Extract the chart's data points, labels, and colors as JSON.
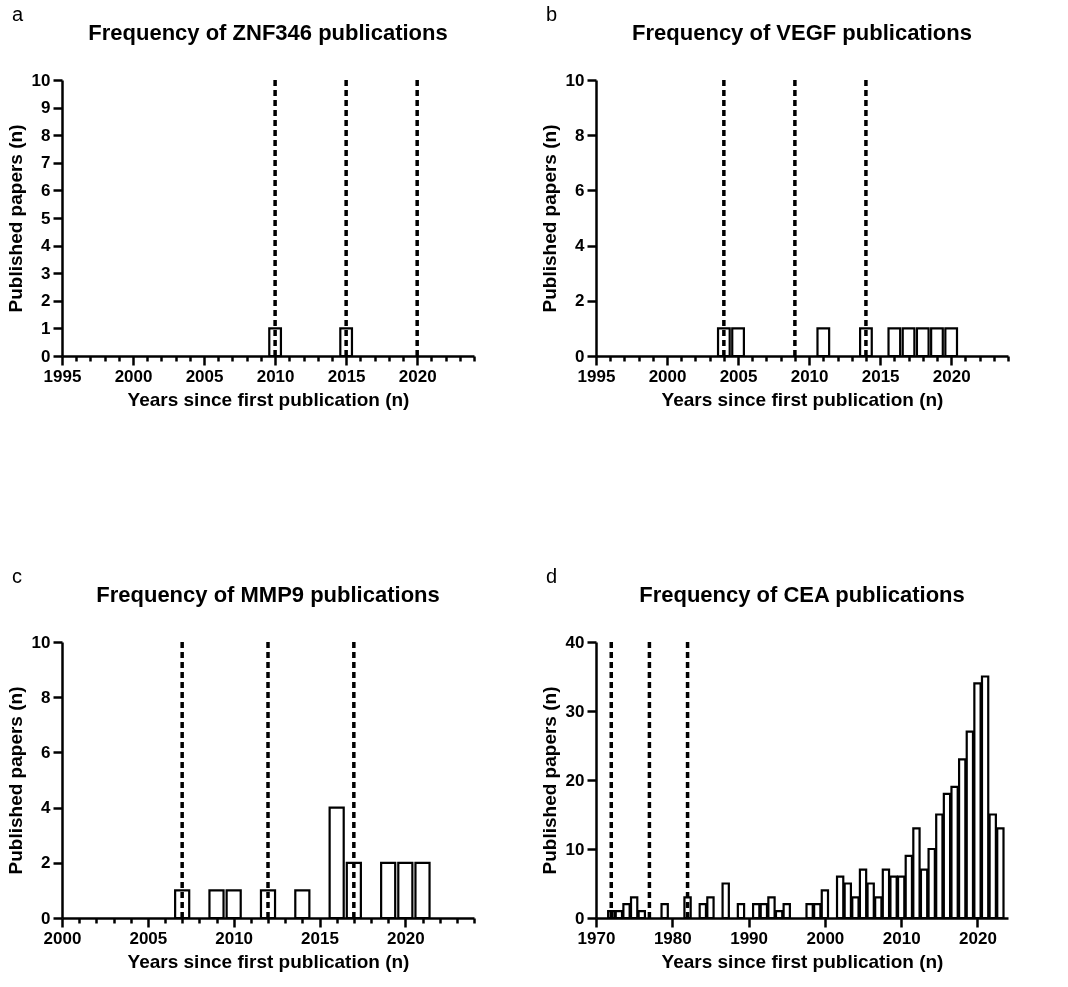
{
  "chart_data": [
    {
      "type": "bar",
      "title": "Frequency of ZNF346 publications",
      "xlabel": "Years since first publication (n)",
      "ylabel": "Published papers (n)",
      "annotations": [
        "a"
      ],
      "color": "#ffffff",
      "x": [
        2010,
        2015
      ],
      "values": [
        1,
        1
      ],
      "xlim": [
        1995,
        2024
      ],
      "xticks": [
        1995,
        {
          "value": 1996,
          "label": null
        },
        {
          "value": 1997,
          "label": null
        },
        {
          "value": 1998,
          "label": null
        },
        {
          "value": 1999,
          "label": null
        },
        2000,
        {
          "value": 2001,
          "label": null
        },
        {
          "value": 2002,
          "label": null
        },
        {
          "value": 2003,
          "label": null
        },
        {
          "value": 2004,
          "label": null
        },
        2005,
        {
          "value": 2006,
          "label": null
        },
        {
          "value": 2007,
          "label": null
        },
        {
          "value": 2008,
          "label": null
        },
        {
          "value": 2009,
          "label": null
        },
        2010,
        {
          "value": 2011,
          "label": null
        },
        {
          "value": 2012,
          "label": null
        },
        {
          "value": 2013,
          "label": null
        },
        {
          "value": 2014,
          "label": null
        },
        2015,
        {
          "value": 2016,
          "label": null
        },
        {
          "value": 2017,
          "label": null
        },
        {
          "value": 2018,
          "label": null
        },
        {
          "value": 2019,
          "label": null
        },
        2020,
        {
          "value": 2021,
          "label": null
        },
        {
          "value": 2022,
          "label": null
        },
        {
          "value": 2023,
          "label": null
        },
        {
          "value": 2024,
          "label": null
        }
      ],
      "ylim": [
        0,
        10
      ],
      "yticks": [
        0,
        1,
        2,
        3,
        4,
        5,
        6,
        7,
        8,
        9,
        10
      ],
      "grid": false,
      "ref_lines": [
        {
          "axis": "x",
          "value": 2010,
          "line_style": "dashed",
          "color": "#000000"
        },
        {
          "axis": "x",
          "value": 2015,
          "line_style": "dashed",
          "color": "#000000"
        },
        {
          "axis": "x",
          "value": 2020,
          "line_style": "dashed",
          "color": "#000000"
        }
      ]
    },
    {
      "type": "bar",
      "title": "Frequency of VEGF publications",
      "xlabel": "Years since first publication (n)",
      "ylabel": "Published papers (n)",
      "annotations": [
        "b"
      ],
      "color": "#ffffff",
      "x": [
        2004,
        2005,
        2011,
        2014,
        2016,
        2017,
        2018,
        2019,
        2020
      ],
      "values": [
        1,
        1,
        1,
        1,
        1,
        1,
        1,
        1,
        1
      ],
      "xlim": [
        1995,
        2024
      ],
      "xticks": [
        1995,
        {
          "value": 1996,
          "label": null
        },
        {
          "value": 1997,
          "label": null
        },
        {
          "value": 1998,
          "label": null
        },
        {
          "value": 1999,
          "label": null
        },
        2000,
        {
          "value": 2001,
          "label": null
        },
        {
          "value": 2002,
          "label": null
        },
        {
          "value": 2003,
          "label": null
        },
        {
          "value": 2004,
          "label": null
        },
        2005,
        {
          "value": 2006,
          "label": null
        },
        {
          "value": 2007,
          "label": null
        },
        {
          "value": 2008,
          "label": null
        },
        {
          "value": 2009,
          "label": null
        },
        2010,
        {
          "value": 2011,
          "label": null
        },
        {
          "value": 2012,
          "label": null
        },
        {
          "value": 2013,
          "label": null
        },
        {
          "value": 2014,
          "label": null
        },
        2015,
        {
          "value": 2016,
          "label": null
        },
        {
          "value": 2017,
          "label": null
        },
        {
          "value": 2018,
          "label": null
        },
        {
          "value": 2019,
          "label": null
        },
        2020,
        {
          "value": 2021,
          "label": null
        },
        {
          "value": 2022,
          "label": null
        },
        {
          "value": 2023,
          "label": null
        },
        {
          "value": 2024,
          "label": null
        }
      ],
      "ylim": [
        0,
        10
      ],
      "yticks": [
        0,
        2,
        4,
        6,
        8,
        10
      ],
      "grid": false,
      "ref_lines": [
        {
          "axis": "x",
          "value": 2004,
          "line_style": "dashed",
          "color": "#000000"
        },
        {
          "axis": "x",
          "value": 2009,
          "line_style": "dashed",
          "color": "#000000"
        },
        {
          "axis": "x",
          "value": 2014,
          "line_style": "dashed",
          "color": "#000000"
        }
      ]
    },
    {
      "type": "bar",
      "title": "Frequency of MMP9 publications",
      "xlabel": "Years since first publication (n)",
      "ylabel": "Published papers (n)",
      "annotations": [
        "c"
      ],
      "color": "#ffffff",
      "x": [
        2007,
        2009,
        2010,
        2012,
        2014,
        2016,
        2017,
        2019,
        2020,
        2021
      ],
      "values": [
        1,
        1,
        1,
        1,
        1,
        4,
        2,
        2,
        2,
        2
      ],
      "xlim": [
        2000,
        2024
      ],
      "xticks": [
        2000,
        {
          "value": 2001,
          "label": null
        },
        {
          "value": 2002,
          "label": null
        },
        {
          "value": 2003,
          "label": null
        },
        {
          "value": 2004,
          "label": null
        },
        2005,
        {
          "value": 2006,
          "label": null
        },
        {
          "value": 2007,
          "label": null
        },
        {
          "value": 2008,
          "label": null
        },
        {
          "value": 2009,
          "label": null
        },
        2010,
        {
          "value": 2011,
          "label": null
        },
        {
          "value": 2012,
          "label": null
        },
        {
          "value": 2013,
          "label": null
        },
        {
          "value": 2014,
          "label": null
        },
        2015,
        {
          "value": 2016,
          "label": null
        },
        {
          "value": 2017,
          "label": null
        },
        {
          "value": 2018,
          "label": null
        },
        {
          "value": 2019,
          "label": null
        },
        2020,
        {
          "value": 2021,
          "label": null
        },
        {
          "value": 2022,
          "label": null
        },
        {
          "value": 2023,
          "label": null
        },
        {
          "value": 2024,
          "label": null
        }
      ],
      "ylim": [
        0,
        10
      ],
      "yticks": [
        0,
        2,
        4,
        6,
        8,
        10
      ],
      "grid": false,
      "ref_lines": [
        {
          "axis": "x",
          "value": 2007,
          "line_style": "dashed",
          "color": "#000000"
        },
        {
          "axis": "x",
          "value": 2012,
          "line_style": "dashed",
          "color": "#000000"
        },
        {
          "axis": "x",
          "value": 2017,
          "line_style": "dashed",
          "color": "#000000"
        }
      ]
    },
    {
      "type": "bar",
      "title": "Frequency of CEA publications",
      "xlabel": "Years since first publication (n)",
      "ylabel": "Published papers (n)",
      "annotations": [
        "d"
      ],
      "color": "#ffffff",
      "x": [
        1972,
        1973,
        1974,
        1975,
        1976,
        1979,
        1982,
        1984,
        1985,
        1987,
        1989,
        1991,
        1992,
        1993,
        1994,
        1995,
        1998,
        1999,
        2000,
        2002,
        2003,
        2004,
        2005,
        2006,
        2007,
        2008,
        2009,
        2010,
        2011,
        2012,
        2013,
        2014,
        2015,
        2016,
        2017,
        2018,
        2019,
        2020,
        2021,
        2022,
        2023
      ],
      "values": [
        1,
        1,
        2,
        3,
        1,
        2,
        3,
        2,
        3,
        5,
        2,
        2,
        2,
        3,
        1,
        2,
        2,
        2,
        4,
        6,
        5,
        3,
        7,
        5,
        3,
        7,
        6,
        6,
        9,
        13,
        7,
        10,
        15,
        18,
        19,
        23,
        27,
        34,
        35,
        15,
        13
      ],
      "xlim": [
        1970,
        2024
      ],
      "xticks": [
        1970,
        1980,
        1990,
        2000,
        2010,
        2020
      ],
      "ylim": [
        0,
        40
      ],
      "yticks": [
        0,
        10,
        20,
        30,
        40
      ],
      "grid": false,
      "ref_lines": [
        {
          "axis": "x",
          "value": 1972,
          "line_style": "dashed",
          "color": "#000000"
        },
        {
          "axis": "x",
          "value": 1977,
          "line_style": "dashed",
          "color": "#000000"
        },
        {
          "axis": "x",
          "value": 1982,
          "line_style": "dashed",
          "color": "#000000"
        }
      ]
    }
  ]
}
